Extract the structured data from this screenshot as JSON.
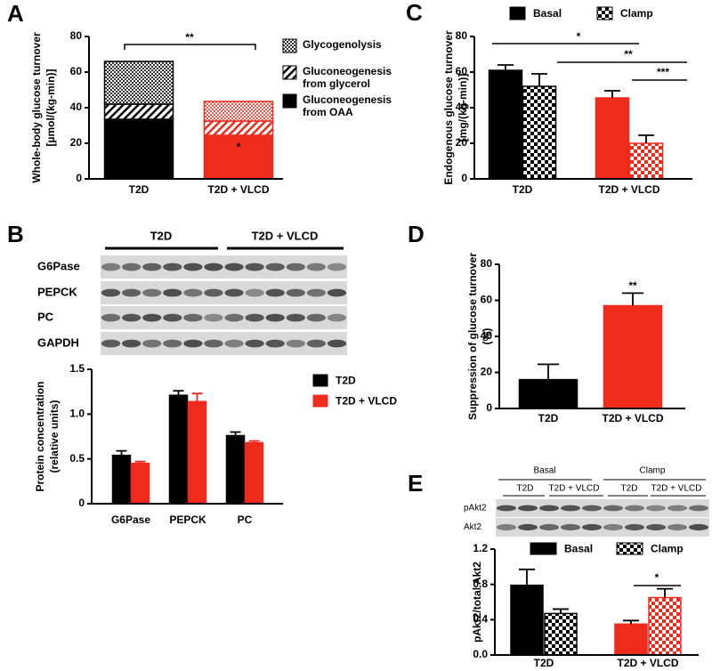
{
  "chart_data": [
    {
      "type": "stacked_bar",
      "panel_label": "A",
      "ylabel": [
        "Whole-body glucose turnover",
        "[µmol/(kg-min)]"
      ],
      "categories": [
        "T2D",
        "T2D + VLCD"
      ],
      "category_colors": [
        "#000000",
        "#ee2a1b"
      ],
      "ylim": [
        0,
        80
      ],
      "yticks": [
        0,
        20,
        40,
        60,
        80
      ],
      "series": [
        {
          "name": "Gluconeogenesis from OAA",
          "pattern": "solid",
          "values": [
            33.5,
            24.5
          ],
          "errors": [
            null,
            1.5
          ]
        },
        {
          "name": "Gluconeogenesis from glycerol",
          "pattern": "hatch",
          "values": [
            8.5,
            8
          ],
          "errors": [
            2.5,
            2
          ]
        },
        {
          "name": "Glycogenolysis",
          "pattern": "dots",
          "values": [
            24,
            11
          ]
        }
      ],
      "annotations": [
        "**",
        "*"
      ]
    },
    {
      "type": "grouped_bar",
      "panel_label": "C",
      "ylabel": [
        "Endogenous glucose turnover",
        "[mg/(kg-min)]"
      ],
      "categories": [
        "T2D",
        "T2D + VLCD"
      ],
      "category_colors": [
        "#000000",
        "#ee2a1b"
      ],
      "ylim": [
        0,
        80
      ],
      "yticks": [
        0,
        20,
        40,
        60,
        80
      ],
      "series": [
        {
          "name": "Basal",
          "pattern": "solid",
          "values": [
            61,
            45.5
          ],
          "errors": [
            3,
            4
          ]
        },
        {
          "name": "Clamp",
          "pattern": "checker",
          "values": [
            52,
            20
          ],
          "errors": [
            7,
            4.5
          ]
        }
      ],
      "annotations": [
        "*",
        "**",
        "***"
      ]
    },
    {
      "type": "bar",
      "panel_label": "D",
      "ylabel": [
        "Suppression of glucose turnover",
        "(%)"
      ],
      "categories": [
        "T2D",
        "T2D + VLCD"
      ],
      "category_colors": [
        "#000000",
        "#ee2a1b"
      ],
      "ylim": [
        0,
        80
      ],
      "yticks": [
        0,
        20,
        40,
        60,
        80
      ],
      "values": [
        16,
        57
      ],
      "errors": [
        8.5,
        7
      ],
      "annotations": [
        "**"
      ]
    },
    {
      "type": "grouped_bar",
      "panel_label": "B",
      "ylabel": [
        "Protein concentration",
        "(relative units)"
      ],
      "categories": [
        "G6Pase",
        "PEPCK",
        "PC"
      ],
      "ylim": [
        0,
        1.5
      ],
      "yticks": [
        0,
        0.5,
        {
          "value": 1,
          "label": "1.0"
        },
        1.5
      ],
      "series": [
        {
          "name": "T2D",
          "color": "#000000",
          "values": [
            0.54,
            1.21,
            0.76
          ],
          "errors": [
            0.05,
            0.05,
            0.04
          ]
        },
        {
          "name": "T2D + VLCD",
          "color": "#ee2a1b",
          "values": [
            0.45,
            1.14,
            0.68
          ],
          "errors": [
            0.02,
            0.09,
            0.02
          ]
        }
      ]
    },
    {
      "type": "grouped_bar",
      "panel_label": "E",
      "ylabel": [
        "pAkt2/total Akt2"
      ],
      "categories": [
        "T2D",
        "T2D + VLCD"
      ],
      "category_colors": [
        "#000000",
        "#ee2a1b"
      ],
      "ylim": [
        0,
        1.2
      ],
      "yticks": [
        {
          "value": 0,
          "label": "0.0"
        },
        0.4,
        0.8,
        1.2
      ],
      "series": [
        {
          "name": "Basal",
          "pattern": "solid",
          "values": [
            0.79,
            0.35
          ],
          "errors": [
            0.18,
            0.04
          ]
        },
        {
          "name": "Clamp",
          "pattern": "checker",
          "values": [
            0.47,
            0.65
          ],
          "errors": [
            0.05,
            0.1
          ]
        }
      ],
      "annotations": [
        "*"
      ]
    }
  ],
  "blots": [
    {
      "groups": [
        "T2D",
        "T2D + VLCD"
      ],
      "rows": [
        "G6Pase",
        "PEPCK",
        "PC",
        "GAPDH"
      ]
    },
    {
      "groups": [
        "Basal",
        "Clamp"
      ],
      "subgroups": [
        "T2D",
        "T2D + VLCD",
        "T2D",
        "T2D + VLCD"
      ],
      "rows": [
        "pAkt2",
        "Akt2"
      ]
    }
  ]
}
